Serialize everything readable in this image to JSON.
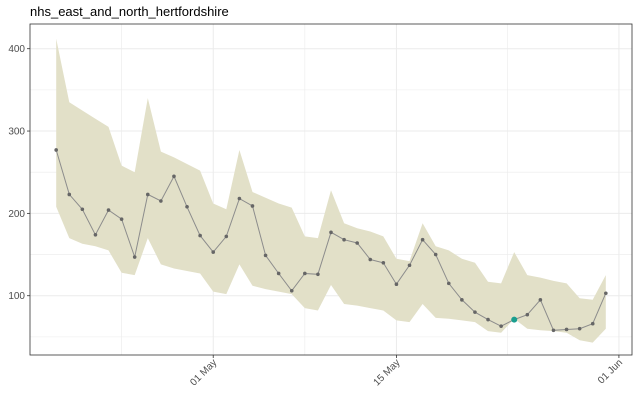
{
  "chart_data": {
    "type": "line",
    "title": "nhs_east_and_north_hertfordshire",
    "xlabel": "",
    "ylabel": "",
    "x_start": "2020-04-19",
    "x_end": "2020-06-01",
    "xlim": [
      "2020-04-17",
      "2020-06-02"
    ],
    "ylim": [
      28,
      430
    ],
    "x_ticks": [
      {
        "date": "2020-05-01",
        "label": "01 May"
      },
      {
        "date": "2020-05-15",
        "label": "15 May"
      },
      {
        "date": "2020-06-01",
        "label": "01 Jun"
      }
    ],
    "y_ticks": [
      100,
      200,
      300,
      400
    ],
    "grid": true,
    "series": [
      {
        "values": [
          277,
          223,
          205,
          174,
          204,
          193,
          147,
          223,
          215,
          245,
          208,
          173,
          153,
          172,
          218,
          209,
          149,
          127,
          106,
          127,
          126,
          177,
          168,
          164,
          144,
          140,
          114,
          137,
          168,
          150,
          115,
          95,
          80,
          71,
          63,
          71,
          77,
          95,
          58,
          59,
          60,
          66,
          103
        ],
        "upper": [
          412,
          335,
          325,
          315,
          305,
          258,
          250,
          340,
          275,
          268,
          260,
          252,
          212,
          205,
          277,
          226,
          219,
          212,
          207,
          172,
          170,
          228,
          188,
          182,
          178,
          172,
          145,
          142,
          188,
          160,
          155,
          145,
          140,
          117,
          115,
          153,
          125,
          122,
          118,
          115,
          97,
          95,
          125
        ],
        "lower": [
          208,
          170,
          163,
          160,
          155,
          128,
          125,
          170,
          138,
          133,
          130,
          127,
          105,
          102,
          138,
          112,
          108,
          105,
          102,
          85,
          82,
          113,
          90,
          88,
          85,
          82,
          70,
          68,
          90,
          73,
          72,
          70,
          68,
          57,
          55,
          72,
          60,
          58,
          57,
          55,
          46,
          43,
          60
        ]
      }
    ],
    "highlight_index": 35,
    "colors": {
      "band": "#e2e0c8",
      "line": "#8c8c8c",
      "point": "#666666",
      "highlight": "#1a9e8f",
      "panel_border": "#333333",
      "grid": "#ebebeb"
    }
  }
}
